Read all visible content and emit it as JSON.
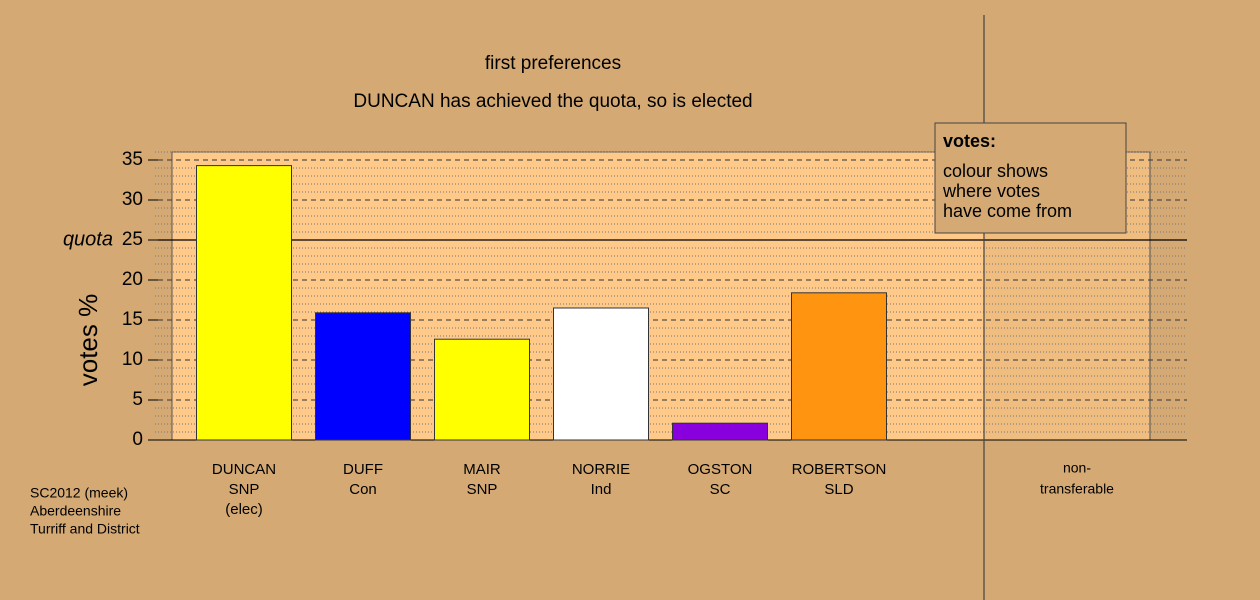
{
  "chart_data": {
    "type": "bar",
    "title": "first preferences",
    "subtitle": "DUNCAN has achieved the quota, so is elected",
    "ylabel": "votes %",
    "categories": [
      [
        "DUNCAN",
        "SNP",
        "(elec)"
      ],
      [
        "DUFF",
        "Con"
      ],
      [
        "MAIR",
        "SNP"
      ],
      [
        "NORRIE",
        "Ind"
      ],
      [
        "OGSTON",
        "SC"
      ],
      [
        "ROBERTSON",
        "SLD"
      ]
    ],
    "values": [
      34.3,
      15.9,
      12.6,
      16.5,
      2.1,
      18.4
    ],
    "colors": [
      "#ffff00",
      "#0000ff",
      "#ffff00",
      "#ffffff",
      "#8800dd",
      "#ff9410"
    ],
    "nontransferable_label": [
      "non-",
      "transferable"
    ],
    "quota": {
      "label": "quota",
      "value": 25
    },
    "ylim": [
      0,
      36
    ],
    "yticks": [
      0,
      5,
      10,
      15,
      20,
      25,
      30,
      35
    ],
    "minor_yticks": [
      1,
      2,
      3,
      4,
      6,
      7,
      8,
      9,
      11,
      12,
      13,
      14,
      16,
      17,
      18,
      19,
      21,
      22,
      23,
      24,
      26,
      27,
      28,
      29,
      31,
      32,
      33,
      34,
      36
    ],
    "grid": true,
    "legend": {
      "title": "votes:",
      "lines": [
        "colour shows",
        "where votes",
        "have come from"
      ]
    },
    "footer": [
      "SC2012 (meek)",
      "Aberdeenshire",
      "Turriff and District"
    ]
  }
}
